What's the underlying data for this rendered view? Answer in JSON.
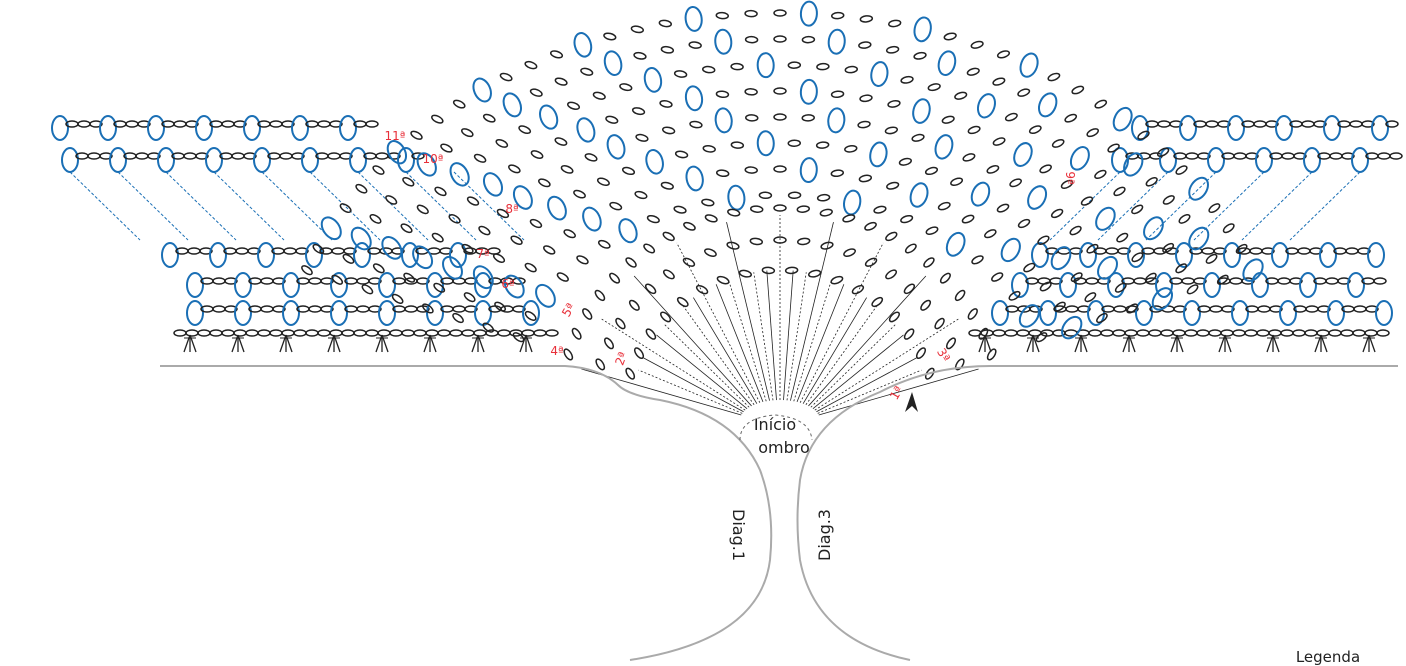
{
  "row_labels": [
    "11ª",
    "10ª",
    "9ª",
    "8ª",
    "7ª",
    "6ª",
    "5ª",
    "4ª",
    "3ª",
    "2ª",
    "1ª"
  ],
  "start_label": [
    "Início",
    "ombro"
  ],
  "diagram_labels": [
    "Diag.1",
    "Diag.3"
  ],
  "legend": "Legenda"
}
